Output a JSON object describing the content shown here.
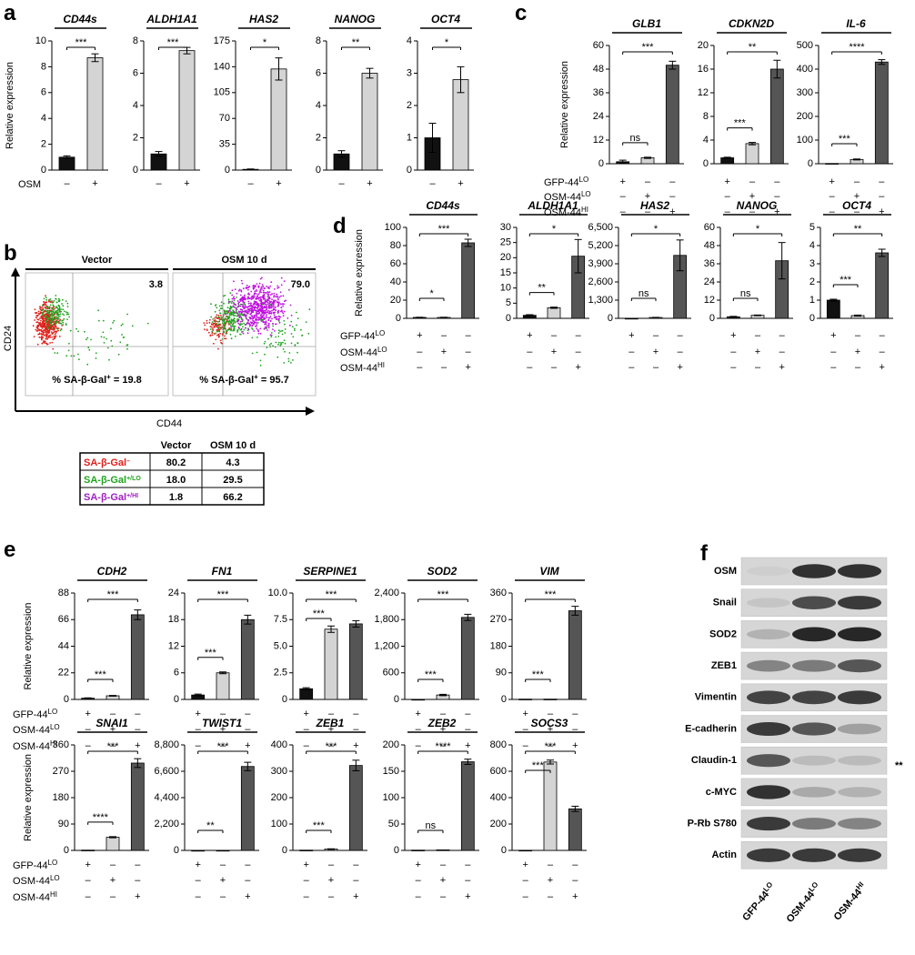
{
  "panel_labels": [
    "a",
    "b",
    "c",
    "d",
    "e",
    "f"
  ],
  "chart_data": [
    {
      "type": "bar",
      "title": "CD44s",
      "ylabel": "Relative expression",
      "condition_names": [
        {
          "text": "OSM"
        }
      ],
      "conditions": [
        [
          "–",
          "+"
        ]
      ],
      "values": [
        1,
        8.7
      ],
      "errors": [
        0.1,
        0.3
      ],
      "colors": [
        "#111111",
        "#d4d4d4"
      ],
      "ylim": [
        0,
        10
      ],
      "yticks": [
        0,
        2,
        4,
        6,
        8,
        10
      ],
      "significance": [
        "***"
      ]
    },
    {
      "type": "bar",
      "title": "ALDH1A1",
      "conditions": [
        [
          "–",
          "+"
        ]
      ],
      "values": [
        1,
        7.4
      ],
      "errors": [
        0.15,
        0.2
      ],
      "colors": [
        "#111111",
        "#d4d4d4"
      ],
      "ylim": [
        0,
        8
      ],
      "yticks": [
        0,
        2,
        4,
        6,
        8
      ],
      "significance": [
        "***"
      ]
    },
    {
      "type": "bar",
      "title": "HAS2",
      "conditions": [
        [
          "–",
          "+"
        ]
      ],
      "values": [
        1,
        137
      ],
      "errors": [
        0.5,
        15
      ],
      "colors": [
        "#111111",
        "#d4d4d4"
      ],
      "ylim": [
        0,
        175
      ],
      "yticks": [
        0,
        35,
        70,
        105,
        140,
        175
      ],
      "significance": [
        "*"
      ]
    },
    {
      "type": "bar",
      "title": "NANOG",
      "conditions": [
        [
          "–",
          "+"
        ]
      ],
      "values": [
        1,
        6
      ],
      "errors": [
        0.2,
        0.3
      ],
      "colors": [
        "#111111",
        "#d4d4d4"
      ],
      "ylim": [
        0,
        8
      ],
      "yticks": [
        0,
        2,
        4,
        6,
        8
      ],
      "significance": [
        "**"
      ]
    },
    {
      "type": "bar",
      "title": "OCT4",
      "conditions": [
        [
          "–",
          "+"
        ]
      ],
      "values": [
        1,
        2.8
      ],
      "errors": [
        0.45,
        0.4
      ],
      "colors": [
        "#111111",
        "#d4d4d4"
      ],
      "ylim": [
        0,
        4
      ],
      "yticks": [
        0,
        1,
        2,
        3,
        4
      ],
      "significance": [
        "*"
      ]
    },
    {
      "type": "bar",
      "title": "GLB1",
      "ylabel": "Relative expression",
      "condition_names": [
        {
          "text": "GFP-44",
          "sup": "LO"
        },
        {
          "text": "OSM-44",
          "sup": "LO"
        },
        {
          "text": "OSM-44",
          "sup": "HI"
        }
      ],
      "conditions": [
        [
          "+",
          "–",
          "–"
        ],
        [
          "–",
          "+",
          "–"
        ],
        [
          "–",
          "–",
          "+"
        ]
      ],
      "values": [
        1,
        3,
        50
      ],
      "errors": [
        0.8,
        0.3,
        2
      ],
      "colors": [
        "#111111",
        "#d4d4d4",
        "#555555"
      ],
      "ylim": [
        0,
        60
      ],
      "yticks": [
        0,
        12,
        24,
        36,
        48,
        60
      ],
      "significance": [
        "ns",
        "***"
      ]
    },
    {
      "type": "bar",
      "title": "CDKN2D",
      "conditions": [
        [
          "+",
          "–",
          "–"
        ],
        [
          "–",
          "+",
          "–"
        ],
        [
          "–",
          "–",
          "+"
        ]
      ],
      "values": [
        1,
        3.4,
        16
      ],
      "errors": [
        0.1,
        0.2,
        1.5
      ],
      "colors": [
        "#111111",
        "#d4d4d4",
        "#555555"
      ],
      "ylim": [
        0,
        20
      ],
      "yticks": [
        0,
        4,
        8,
        12,
        16,
        20
      ],
      "significance": [
        "***",
        "**"
      ]
    },
    {
      "type": "bar",
      "title": "IL-6",
      "conditions": [
        [
          "+",
          "–",
          "–"
        ],
        [
          "–",
          "+",
          "–"
        ],
        [
          "–",
          "–",
          "+"
        ]
      ],
      "values": [
        1,
        18,
        430
      ],
      "errors": [
        0,
        2,
        10
      ],
      "colors": [
        "#111111",
        "#d4d4d4",
        "#555555"
      ],
      "ylim": [
        0,
        500
      ],
      "yticks": [
        0,
        100,
        200,
        300,
        400,
        500
      ],
      "significance": [
        "***",
        "****"
      ]
    },
    {
      "type": "bar",
      "title": "CD44s",
      "ylabel": "Relative expression",
      "condition_names": [
        {
          "text": "GFP-44",
          "sup": "LO"
        },
        {
          "text": "OSM-44",
          "sup": "LO"
        },
        {
          "text": "OSM-44",
          "sup": "HI"
        }
      ],
      "conditions": [
        [
          "+",
          "–",
          "–"
        ],
        [
          "–",
          "+",
          "–"
        ],
        [
          "–",
          "–",
          "+"
        ]
      ],
      "values": [
        1,
        1,
        83
      ],
      "errors": [
        0.2,
        0.2,
        4
      ],
      "colors": [
        "#111111",
        "#d4d4d4",
        "#555555"
      ],
      "ylim": [
        0,
        100
      ],
      "yticks": [
        0,
        20,
        40,
        60,
        80,
        100
      ],
      "significance": [
        "*",
        "***"
      ]
    },
    {
      "type": "bar",
      "title": "ALDH1A1",
      "conditions": [
        [
          "+",
          "–",
          "–"
        ],
        [
          "–",
          "+",
          "–"
        ],
        [
          "–",
          "–",
          "+"
        ]
      ],
      "values": [
        1,
        3.5,
        20.5
      ],
      "errors": [
        0.2,
        0.2,
        5.5
      ],
      "colors": [
        "#111111",
        "#d4d4d4",
        "#555555"
      ],
      "ylim": [
        0,
        30
      ],
      "yticks": [
        0,
        5,
        10,
        15,
        20,
        25,
        30
      ],
      "significance": [
        "**",
        "*"
      ]
    },
    {
      "type": "bar",
      "title": "HAS2",
      "conditions": [
        [
          "+",
          "–",
          "–"
        ],
        [
          "–",
          "+",
          "–"
        ],
        [
          "–",
          "–",
          "+"
        ]
      ],
      "values": [
        1,
        60,
        4500
      ],
      "errors": [
        0,
        10,
        1100
      ],
      "colors": [
        "#111111",
        "#d4d4d4",
        "#555555"
      ],
      "ylim": [
        0,
        6500
      ],
      "yticks": [
        0,
        {
          "value": 1300,
          "label": "1,300"
        },
        {
          "value": 2600,
          "label": "2,600"
        },
        {
          "value": 3900,
          "label": "3,900"
        },
        {
          "value": 5200,
          "label": "5,200"
        },
        {
          "value": 6500,
          "label": "6,500"
        }
      ],
      "significance": [
        "ns",
        "*"
      ]
    },
    {
      "type": "bar",
      "title": "NANOG",
      "conditions": [
        [
          "+",
          "–",
          "–"
        ],
        [
          "–",
          "+",
          "–"
        ],
        [
          "–",
          "–",
          "+"
        ]
      ],
      "values": [
        1,
        2,
        38
      ],
      "errors": [
        0.3,
        0.2,
        12
      ],
      "colors": [
        "#111111",
        "#d4d4d4",
        "#555555"
      ],
      "ylim": [
        0,
        60
      ],
      "yticks": [
        0,
        12,
        24,
        36,
        48,
        60
      ],
      "significance": [
        "ns",
        "*"
      ]
    },
    {
      "type": "bar",
      "title": "OCT4",
      "conditions": [
        [
          "+",
          "–",
          "–"
        ],
        [
          "–",
          "+",
          "–"
        ],
        [
          "–",
          "–",
          "+"
        ]
      ],
      "values": [
        1,
        0.15,
        3.6
      ],
      "errors": [
        0.05,
        0.03,
        0.2
      ],
      "colors": [
        "#111111",
        "#d4d4d4",
        "#555555"
      ],
      "ylim": [
        0,
        5
      ],
      "yticks": [
        0,
        1,
        2,
        3,
        4,
        5
      ],
      "significance": [
        "***",
        "**"
      ]
    },
    {
      "type": "bar",
      "title": "CDH2",
      "ylabel": "Relative expression",
      "condition_names": [
        {
          "text": "GFP-44",
          "sup": "LO"
        },
        {
          "text": "OSM-44",
          "sup": "LO"
        },
        {
          "text": "OSM-44",
          "sup": "HI"
        }
      ],
      "conditions": [
        [
          "+",
          "–",
          "–"
        ],
        [
          "–",
          "+",
          "–"
        ],
        [
          "–",
          "–",
          "+"
        ]
      ],
      "values": [
        1,
        3,
        70
      ],
      "errors": [
        0.3,
        0.3,
        4
      ],
      "colors": [
        "#111111",
        "#d4d4d4",
        "#555555"
      ],
      "ylim": [
        0,
        88
      ],
      "yticks": [
        0,
        22,
        44,
        66,
        88
      ],
      "significance": [
        "***",
        "***"
      ]
    },
    {
      "type": "bar",
      "title": "FN1",
      "conditions": [
        [
          "+",
          "–",
          "–"
        ],
        [
          "–",
          "+",
          "–"
        ],
        [
          "–",
          "–",
          "+"
        ]
      ],
      "values": [
        1,
        6,
        18
      ],
      "errors": [
        0.2,
        0.2,
        1
      ],
      "colors": [
        "#111111",
        "#d4d4d4",
        "#555555"
      ],
      "ylim": [
        0,
        24
      ],
      "yticks": [
        0,
        6,
        12,
        18,
        24
      ],
      "significance": [
        "***",
        "***"
      ]
    },
    {
      "type": "bar",
      "title": "SERPINE1",
      "conditions": [
        [
          "+",
          "–",
          "–"
        ],
        [
          "–",
          "+",
          "–"
        ],
        [
          "–",
          "–",
          "+"
        ]
      ],
      "values": [
        1,
        6.6,
        7.1
      ],
      "errors": [
        0.1,
        0.3,
        0.3
      ],
      "colors": [
        "#111111",
        "#d4d4d4",
        "#555555"
      ],
      "ylim": [
        0,
        10
      ],
      "yticks": [
        0,
        2.5,
        {
          "value": 5,
          "label": "5.0"
        },
        7.5,
        {
          "value": 10,
          "label": "10.0"
        }
      ],
      "significance": [
        "***",
        "***"
      ]
    },
    {
      "type": "bar",
      "title": "SOD2",
      "conditions": [
        [
          "+",
          "–",
          "–"
        ],
        [
          "–",
          "+",
          "–"
        ],
        [
          "–",
          "–",
          "+"
        ]
      ],
      "values": [
        1,
        100,
        1850
      ],
      "errors": [
        0,
        15,
        70
      ],
      "colors": [
        "#111111",
        "#d4d4d4",
        "#555555"
      ],
      "ylim": [
        0,
        2400
      ],
      "yticks": [
        0,
        600,
        {
          "value": 1200,
          "label": "1,200"
        },
        {
          "value": 1800,
          "label": "1,800"
        },
        {
          "value": 2400,
          "label": "2,400"
        }
      ],
      "significance": [
        "***",
        "***"
      ]
    },
    {
      "type": "bar",
      "title": "VIM",
      "conditions": [
        [
          "+",
          "–",
          "–"
        ],
        [
          "–",
          "+",
          "–"
        ],
        [
          "–",
          "–",
          "+"
        ]
      ],
      "values": [
        1,
        1,
        300
      ],
      "errors": [
        0,
        0,
        15
      ],
      "colors": [
        "#111111",
        "#d4d4d4",
        "#555555"
      ],
      "ylim": [
        0,
        360
      ],
      "yticks": [
        0,
        90,
        180,
        270,
        360
      ],
      "significance": [
        "***",
        "***"
      ]
    },
    {
      "type": "bar",
      "title": "SNAI1",
      "ylabel": "Relative expression",
      "condition_names": [
        {
          "text": "GFP-44",
          "sup": "LO"
        },
        {
          "text": "OSM-44",
          "sup": "LO"
        },
        {
          "text": "OSM-44",
          "sup": "HI"
        }
      ],
      "conditions": [
        [
          "+",
          "–",
          "–"
        ],
        [
          "–",
          "+",
          "–"
        ],
        [
          "–",
          "–",
          "+"
        ]
      ],
      "values": [
        1,
        45,
        298
      ],
      "errors": [
        0,
        2,
        15
      ],
      "colors": [
        "#111111",
        "#d4d4d4",
        "#555555"
      ],
      "ylim": [
        0,
        360
      ],
      "yticks": [
        0,
        90,
        180,
        270,
        360
      ],
      "significance": [
        "****",
        "***"
      ]
    },
    {
      "type": "bar",
      "title": "TWIST1",
      "conditions": [
        [
          "+",
          "–",
          "–"
        ],
        [
          "–",
          "+",
          "–"
        ],
        [
          "–",
          "–",
          "+"
        ]
      ],
      "values": [
        1,
        5,
        7000
      ],
      "errors": [
        0,
        0,
        350
      ],
      "colors": [
        "#111111",
        "#d4d4d4",
        "#555555"
      ],
      "ylim": [
        0,
        8800
      ],
      "yticks": [
        0,
        {
          "value": 2200,
          "label": "2,200"
        },
        {
          "value": 4400,
          "label": "4,400"
        },
        {
          "value": 6600,
          "label": "6,600"
        },
        {
          "value": 8800,
          "label": "8,800"
        }
      ],
      "significance": [
        "**",
        "***"
      ]
    },
    {
      "type": "bar",
      "title": "ZEB1",
      "conditions": [
        [
          "+",
          "–",
          "–"
        ],
        [
          "–",
          "+",
          "–"
        ],
        [
          "–",
          "–",
          "+"
        ]
      ],
      "values": [
        1,
        5,
        322
      ],
      "errors": [
        0,
        1,
        20
      ],
      "colors": [
        "#111111",
        "#d4d4d4",
        "#555555"
      ],
      "ylim": [
        0,
        400
      ],
      "yticks": [
        0,
        100,
        200,
        300,
        400
      ],
      "significance": [
        "***",
        "***"
      ]
    },
    {
      "type": "bar",
      "title": "ZEB2",
      "conditions": [
        [
          "+",
          "–",
          "–"
        ],
        [
          "–",
          "+",
          "–"
        ],
        [
          "–",
          "–",
          "+"
        ]
      ],
      "values": [
        0.5,
        1,
        168
      ],
      "errors": [
        0,
        0,
        5
      ],
      "colors": [
        "#111111",
        "#d4d4d4",
        "#555555"
      ],
      "ylim": [
        0,
        200
      ],
      "yticks": [
        0,
        50,
        100,
        150,
        200
      ],
      "significance": [
        "ns",
        "****"
      ]
    },
    {
      "type": "bar",
      "title": "SOCS3",
      "conditions": [
        [
          "+",
          "–",
          "–"
        ],
        [
          "–",
          "+",
          "–"
        ],
        [
          "–",
          "–",
          "+"
        ]
      ],
      "values": [
        1,
        670,
        315
      ],
      "errors": [
        0,
        15,
        20
      ],
      "colors": [
        "#111111",
        "#d4d4d4",
        "#555555"
      ],
      "ylim": [
        0,
        800
      ],
      "yticks": [
        0,
        200,
        400,
        600,
        800
      ],
      "significance": [
        "***",
        "***"
      ]
    }
  ],
  "flow": {
    "y_axis": "CD24",
    "x_axis": "CD44",
    "plots": [
      {
        "title": "Vector",
        "quadrant_value": "3.8",
        "caption": "% SA-β-Gal",
        "caption_sup": "+",
        "caption_value": " = 19.8"
      },
      {
        "title": "OSM 10 d",
        "quadrant_value": "79.0",
        "caption": "% SA-β-Gal",
        "caption_sup": "+",
        "caption_value": " = 95.7"
      }
    ]
  },
  "flow_table": {
    "header": [
      "Vector",
      "OSM 10 d"
    ],
    "rows": [
      {
        "label": "SA-β-Gal",
        "sup": "–",
        "color": "#e0201b",
        "cells": [
          "80.2",
          "4.3"
        ]
      },
      {
        "label": "SA-β-Gal",
        "sup": "+/LO",
        "color": "#1fa51f",
        "cells": [
          "18.0",
          "29.5"
        ]
      },
      {
        "label": "SA-β-Gal",
        "sup": "+/HI",
        "color": "#a020c0",
        "cells": [
          "1.8",
          "66.2"
        ]
      }
    ]
  },
  "blot": {
    "proteins": [
      "OSM",
      "Snail",
      "SOD2",
      "ZEB1",
      "Vimentin",
      "E-cadherin",
      "Claudin-1",
      "c-MYC",
      "P-Rb S780",
      "Actin"
    ],
    "lanes": [
      {
        "text": "GFP-44",
        "sup": "LO"
      },
      {
        "text": "OSM-44",
        "sup": "LO"
      },
      {
        "text": "OSM-44",
        "sup": "HI"
      }
    ],
    "annotation": "**"
  }
}
